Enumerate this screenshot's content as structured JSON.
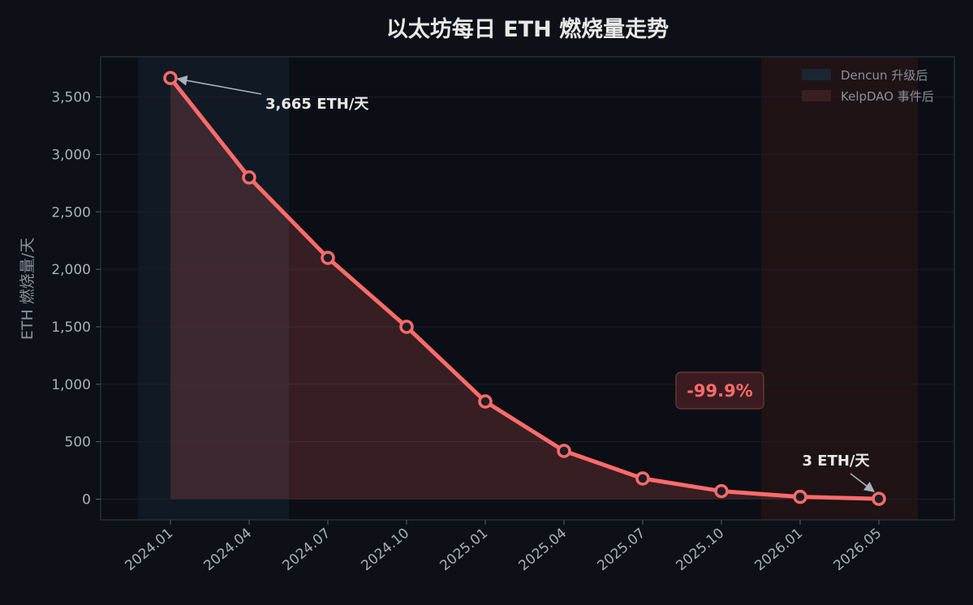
{
  "chart_data": {
    "type": "line",
    "title": "以太坊每日 ETH 燃烧量走势",
    "ylabel": "ETH 燃烧量/天",
    "xlabel": "",
    "categories": [
      "2024.01",
      "2024.04",
      "2024.07",
      "2024.10",
      "2025.01",
      "2025.04",
      "2025.07",
      "2025.10",
      "2026.01",
      "2026.05"
    ],
    "values": [
      3665,
      2800,
      2100,
      1500,
      850,
      420,
      180,
      70,
      20,
      3
    ],
    "ylim": [
      -180,
      3850
    ],
    "yticks": [
      0,
      500,
      1000,
      1500,
      2000,
      2500,
      3000,
      3500
    ],
    "ytick_labels": [
      "0",
      "500",
      "1,000",
      "1,500",
      "2,000",
      "2,500",
      "3,000",
      "3,500"
    ],
    "grid": true,
    "legend_position": "top-right",
    "legend": [
      {
        "label": "Dencun 升级后",
        "color": "#1c2633"
      },
      {
        "label": "KelpDAO 事件后",
        "color": "#3a1f22"
      }
    ],
    "shaded_regions": [
      {
        "label": "Dencun 升级后",
        "from": "2024.01",
        "to": "2024.07",
        "color": "#111a24"
      },
      {
        "label": "KelpDAO 事件后",
        "from": "2026.01",
        "to": "2026.05",
        "color": "#1f1316"
      }
    ],
    "annotations": [
      {
        "text": "3,665 ETH/天",
        "point_index": 0
      },
      {
        "text": "3 ETH/天",
        "point_index": 9
      },
      {
        "text": "-99.9%",
        "boxed": true
      }
    ],
    "colors": {
      "line": "#ff6b6b",
      "marker_fill": "#1a1d24",
      "text": "#e8e8e8",
      "tick_text": "#aab0b8",
      "axis_label": "#8a9099"
    }
  }
}
